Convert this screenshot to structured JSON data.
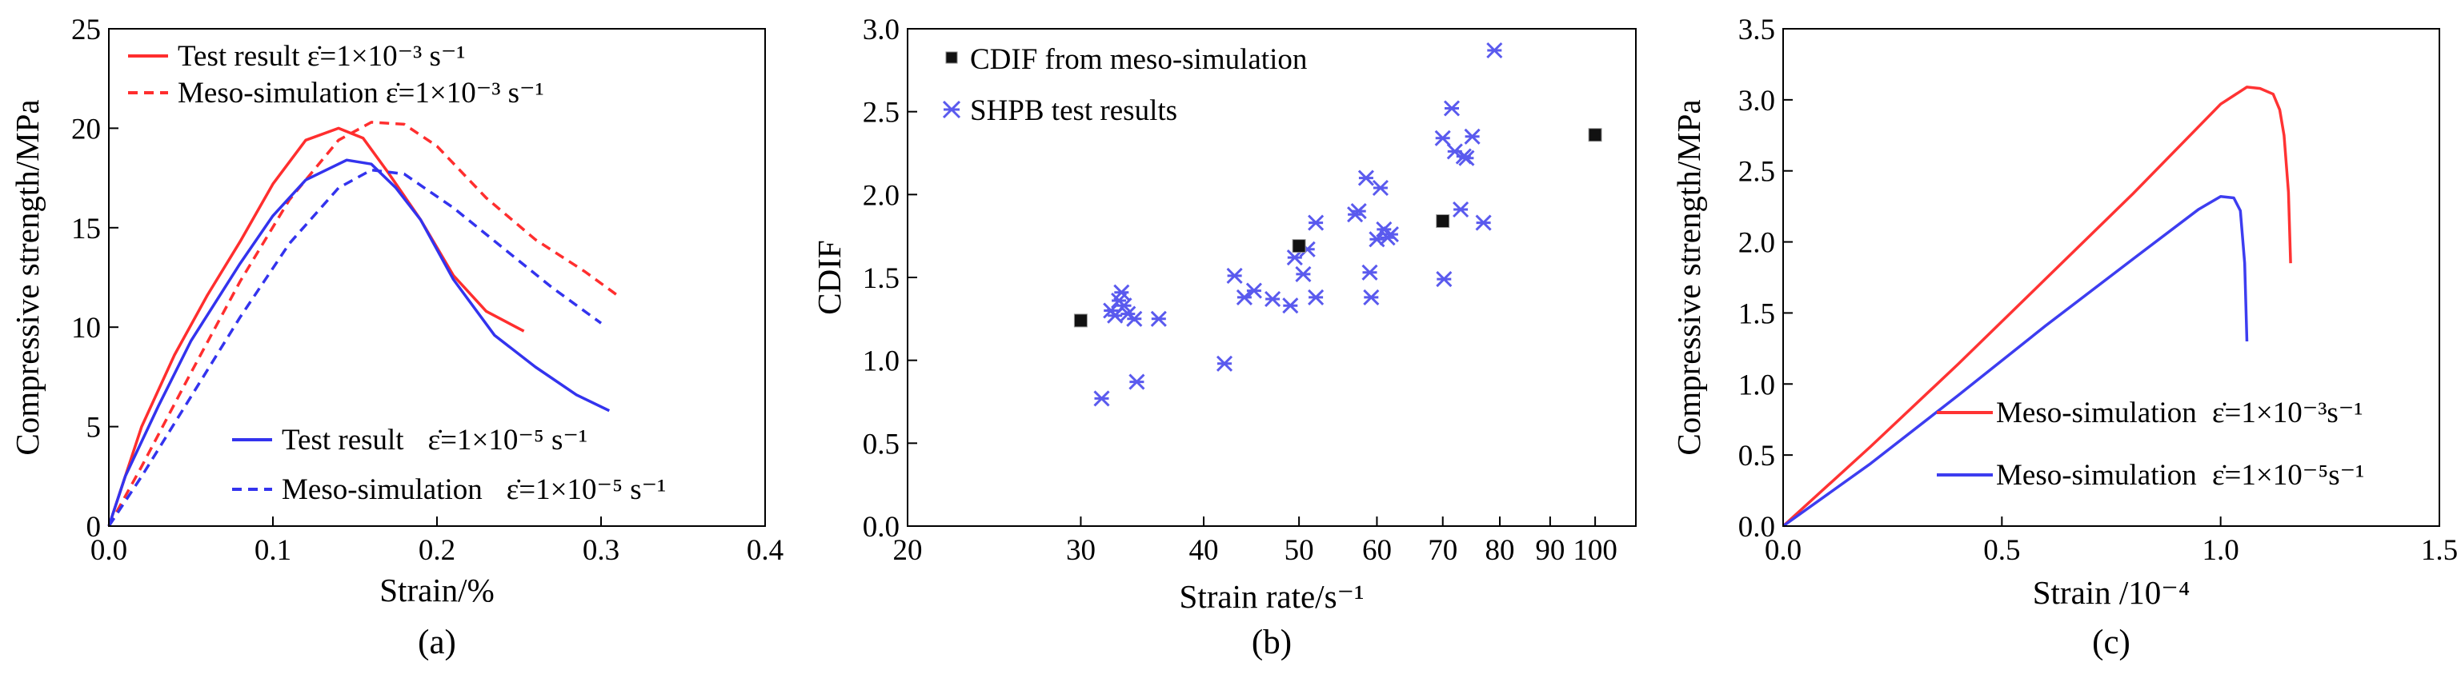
{
  "chart_data": [
    {
      "type": "line",
      "panel_label": "(a)",
      "xlabel": "Strain/%",
      "ylabel": "Compressive strength/MPa",
      "xlim": [
        0.0,
        0.4
      ],
      "ylim": [
        0,
        25
      ],
      "xticks": [
        "0.0",
        "0.1",
        "0.2",
        "0.3",
        "0.4"
      ],
      "yticks": [
        "0",
        "5",
        "10",
        "15",
        "20",
        "25"
      ],
      "series": [
        {
          "name": "Test result ε̇=1×10⁻³ s⁻¹",
          "legend_main": "Test result ",
          "legend_rate": "ε̇=1×10⁻³ s⁻¹",
          "color": "#ff2e2e",
          "dash": false,
          "x": [
            0.0,
            0.02,
            0.04,
            0.06,
            0.08,
            0.1,
            0.12,
            0.14,
            0.155,
            0.17,
            0.19,
            0.21,
            0.23,
            0.253
          ],
          "y": [
            0.0,
            5.0,
            8.6,
            11.6,
            14.3,
            17.2,
            19.4,
            20.0,
            19.5,
            17.8,
            15.4,
            12.6,
            10.8,
            9.8
          ]
        },
        {
          "name": "Meso-simulation ε̇=1×10⁻³ s⁻¹",
          "legend_main": "Meso-simulation ",
          "legend_rate": "ε̇=1×10⁻³ s⁻¹",
          "color": "#ff2e2e",
          "dash": true,
          "x": [
            0.0,
            0.02,
            0.05,
            0.08,
            0.11,
            0.14,
            0.16,
            0.18,
            0.2,
            0.23,
            0.26,
            0.29,
            0.31
          ],
          "y": [
            0.0,
            3.0,
            7.7,
            12.3,
            16.4,
            19.4,
            20.3,
            20.2,
            19.1,
            16.5,
            14.4,
            12.8,
            11.6
          ]
        },
        {
          "name": "Test result ε̇=1×10⁻⁵ s⁻¹",
          "legend_main": "Test result",
          "legend_rate": "ε̇=1×10⁻⁵ s⁻¹",
          "color": "#3333ee",
          "dash": false,
          "x": [
            0.0,
            0.01,
            0.03,
            0.05,
            0.08,
            0.1,
            0.12,
            0.145,
            0.16,
            0.175,
            0.19,
            0.21,
            0.235,
            0.26,
            0.285,
            0.305
          ],
          "y": [
            0.0,
            2.5,
            6.0,
            9.3,
            13.2,
            15.6,
            17.4,
            18.4,
            18.2,
            17.0,
            15.4,
            12.4,
            9.6,
            8.0,
            6.6,
            5.8
          ]
        },
        {
          "name": "Meso-simulation ε̇=1×10⁻⁵ s⁻¹",
          "legend_main": "Meso-simulation",
          "legend_rate": "ε̇=1×10⁻⁵ s⁻¹",
          "color": "#3333ee",
          "dash": true,
          "x": [
            0.0,
            0.02,
            0.05,
            0.08,
            0.11,
            0.14,
            0.16,
            0.18,
            0.21,
            0.24,
            0.27,
            0.3
          ],
          "y": [
            0.0,
            2.5,
            6.5,
            10.5,
            14.2,
            17.0,
            17.9,
            17.7,
            16.0,
            14.0,
            12.0,
            10.2
          ]
        }
      ]
    },
    {
      "type": "scatter",
      "panel_label": "(b)",
      "xlabel": "Strain rate/s⁻¹",
      "ylabel": "CDIF",
      "xscale": "log",
      "xlim": [
        20,
        110
      ],
      "ylim": [
        0.0,
        3.0
      ],
      "xticks": [
        20,
        30,
        40,
        50,
        60,
        70,
        80,
        90,
        100
      ],
      "yticks": [
        "0.0",
        "0.5",
        "1.0",
        "1.5",
        "2.0",
        "2.5",
        "3.0"
      ],
      "series": [
        {
          "name": "CDIF from meso-simulation",
          "marker": "square",
          "color": "#111111",
          "x": [
            30,
            50,
            70,
            100
          ],
          "y": [
            1.24,
            1.69,
            1.84,
            2.36
          ]
        },
        {
          "name": "SHPB test results",
          "marker": "asterisk",
          "color": "#5a5aee",
          "x": [
            31.5,
            32.2,
            32.5,
            32.8,
            33.0,
            33.2,
            33.5,
            34.0,
            34.2,
            36.0,
            42.0,
            43.0,
            44.0,
            45.0,
            47.0,
            49.0,
            49.5,
            50.5,
            51.0,
            52.0,
            52.0,
            57.0,
            57.5,
            58.5,
            59.0,
            59.2,
            60.0,
            60.5,
            61.0,
            61.5,
            62.0,
            70.0,
            70.2,
            71.5,
            72.0,
            73.0,
            73.5,
            74.0,
            75.0,
            77.0,
            79.0
          ],
          "y": [
            0.77,
            1.3,
            1.27,
            1.36,
            1.41,
            1.33,
            1.28,
            1.25,
            0.87,
            1.25,
            0.98,
            1.51,
            1.38,
            1.42,
            1.37,
            1.33,
            1.62,
            1.52,
            1.67,
            1.38,
            1.83,
            1.88,
            1.9,
            2.1,
            1.53,
            1.38,
            1.73,
            2.04,
            1.79,
            1.74,
            1.76,
            2.34,
            1.49,
            2.52,
            2.26,
            1.91,
            2.23,
            2.22,
            2.35,
            1.83,
            2.87
          ]
        }
      ]
    },
    {
      "type": "line",
      "panel_label": "(c)",
      "xlabel": "Strain /10⁻⁴",
      "ylabel": "Compressive strength/MPa",
      "xlim": [
        0.0,
        1.5
      ],
      "ylim": [
        0.0,
        3.5
      ],
      "xticks": [
        "0.0",
        "0.5",
        "1.0",
        "1.5"
      ],
      "yticks": [
        "0.0",
        "0.5",
        "1.0",
        "1.5",
        "2.0",
        "2.5",
        "3.0",
        "3.5"
      ],
      "series": [
        {
          "name": "Meso-simulation ε̇=1×10⁻³s⁻¹",
          "legend_main": "Meso-simulation ",
          "legend_rate": "ε̇=1×10⁻³s⁻¹",
          "color": "#ff3333",
          "dash": false,
          "x": [
            0.0,
            0.2,
            0.4,
            0.6,
            0.8,
            1.0,
            1.06,
            1.09,
            1.12,
            1.135,
            1.145,
            1.155,
            1.16
          ],
          "y": [
            0.0,
            0.56,
            1.14,
            1.74,
            2.34,
            2.97,
            3.09,
            3.08,
            3.04,
            2.93,
            2.75,
            2.35,
            1.85
          ]
        },
        {
          "name": "Meso-simulation ε̇=1×10⁻⁵s⁻¹",
          "legend_main": "Meso-simulation ",
          "legend_rate": "ε̇=1×10⁻⁵s⁻¹",
          "color": "#3d3df0",
          "dash": false,
          "x": [
            0.0,
            0.2,
            0.4,
            0.6,
            0.8,
            0.95,
            1.0,
            1.03,
            1.045,
            1.055,
            1.06
          ],
          "y": [
            0.0,
            0.44,
            0.92,
            1.41,
            1.88,
            2.23,
            2.32,
            2.31,
            2.22,
            1.85,
            1.3
          ]
        }
      ]
    }
  ]
}
